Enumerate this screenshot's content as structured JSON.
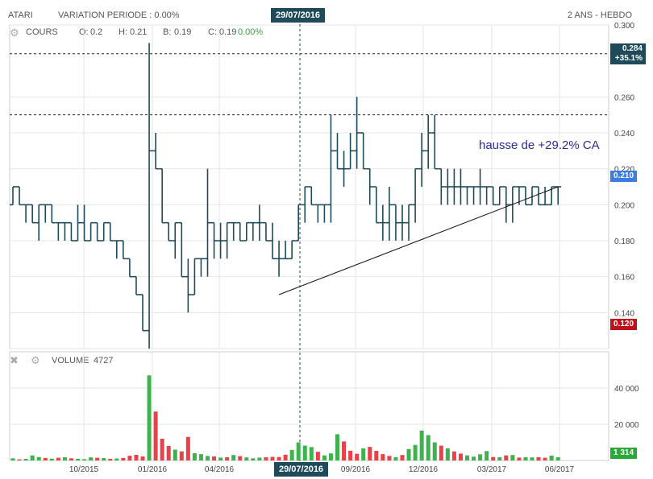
{
  "header": {
    "ticker": "ATARI",
    "variation_label": "VARIATION PERIODE : 0.00%",
    "period_label": "2 ANS - HEBDO",
    "crosshair_date": "29/07/2016"
  },
  "legend": {
    "series_label": "COURS",
    "open_label": "O:",
    "open_value": "0.2",
    "high_label": "H:",
    "high_value": "0.21",
    "low_label": "B:",
    "low_value": "0.19",
    "close_label": "C:",
    "close_value": "0.19",
    "change_value": "0.00%"
  },
  "volume_panel": {
    "label": "VOLUME",
    "value": "4727"
  },
  "badges": {
    "top_line_value": "0.284",
    "top_line_change": "+35.1%",
    "current_value": "0.210",
    "low_value": "0.120",
    "volume_value": "1 314"
  },
  "annotation": "hausse de +29.2% CA",
  "colors": {
    "ohlc": "#1e4a5a",
    "volume_up": "#3cb44b",
    "volume_down": "#e8414a",
    "grid": "#e6e6e6",
    "badge_dark": "#1e4a5a",
    "badge_blue": "#3b7de0",
    "badge_red": "#c0101a",
    "badge_green": "#2aa838",
    "annotation": "#2b2b9a",
    "change_green": "#2aa838"
  },
  "chart_data": [
    {
      "type": "ohlc",
      "title": "",
      "x_tick_labels": [
        "10/2015",
        "01/2016",
        "04/2016",
        "09/2016",
        "12/2016",
        "03/2017",
        "06/2017"
      ],
      "y_tick_labels": [
        "0.140",
        "0.160",
        "0.180",
        "0.200",
        "0.220",
        "0.240",
        "0.260",
        "0.300"
      ],
      "ylim": [
        0.12,
        0.3
      ],
      "grid": true,
      "horizontal_lines": [
        0.284,
        0.25
      ],
      "trendline": {
        "from_week": 41,
        "from_value": 0.15,
        "to_week": 84,
        "to_value": 0.21
      },
      "weeks": 85,
      "bars": [
        [
          0.2,
          0.21,
          0.2,
          0.21
        ],
        [
          0.21,
          0.21,
          0.2,
          0.2
        ],
        [
          0.2,
          0.2,
          0.19,
          0.2
        ],
        [
          0.2,
          0.2,
          0.19,
          0.19
        ],
        [
          0.19,
          0.2,
          0.18,
          0.2
        ],
        [
          0.2,
          0.2,
          0.19,
          0.2
        ],
        [
          0.2,
          0.2,
          0.19,
          0.19
        ],
        [
          0.19,
          0.19,
          0.18,
          0.19
        ],
        [
          0.19,
          0.19,
          0.18,
          0.19
        ],
        [
          0.19,
          0.19,
          0.18,
          0.18
        ],
        [
          0.18,
          0.2,
          0.18,
          0.19
        ],
        [
          0.19,
          0.2,
          0.18,
          0.18
        ],
        [
          0.18,
          0.19,
          0.18,
          0.19
        ],
        [
          0.19,
          0.19,
          0.18,
          0.18
        ],
        [
          0.18,
          0.19,
          0.18,
          0.19
        ],
        [
          0.19,
          0.19,
          0.18,
          0.18
        ],
        [
          0.18,
          0.18,
          0.17,
          0.18
        ],
        [
          0.18,
          0.18,
          0.17,
          0.17
        ],
        [
          0.17,
          0.17,
          0.16,
          0.16
        ],
        [
          0.16,
          0.16,
          0.15,
          0.15
        ],
        [
          0.15,
          0.15,
          0.13,
          0.13
        ],
        [
          0.13,
          0.29,
          0.12,
          0.23
        ],
        [
          0.23,
          0.24,
          0.22,
          0.22
        ],
        [
          0.22,
          0.22,
          0.19,
          0.19
        ],
        [
          0.19,
          0.19,
          0.18,
          0.18
        ],
        [
          0.18,
          0.19,
          0.17,
          0.19
        ],
        [
          0.19,
          0.19,
          0.16,
          0.16
        ],
        [
          0.16,
          0.17,
          0.14,
          0.15
        ],
        [
          0.15,
          0.17,
          0.15,
          0.17
        ],
        [
          0.17,
          0.17,
          0.16,
          0.17
        ],
        [
          0.17,
          0.22,
          0.16,
          0.19
        ],
        [
          0.19,
          0.19,
          0.17,
          0.18
        ],
        [
          0.18,
          0.19,
          0.17,
          0.18
        ],
        [
          0.18,
          0.19,
          0.17,
          0.19
        ],
        [
          0.19,
          0.19,
          0.18,
          0.19
        ],
        [
          0.19,
          0.19,
          0.18,
          0.18
        ],
        [
          0.18,
          0.19,
          0.18,
          0.19
        ],
        [
          0.19,
          0.19,
          0.18,
          0.19
        ],
        [
          0.19,
          0.2,
          0.18,
          0.19
        ],
        [
          0.19,
          0.19,
          0.18,
          0.18
        ],
        [
          0.18,
          0.19,
          0.17,
          0.17
        ],
        [
          0.17,
          0.18,
          0.16,
          0.17
        ],
        [
          0.17,
          0.18,
          0.17,
          0.17
        ],
        [
          0.17,
          0.18,
          0.17,
          0.18
        ],
        [
          0.18,
          0.2,
          0.18,
          0.2
        ],
        [
          0.2,
          0.21,
          0.19,
          0.21
        ],
        [
          0.21,
          0.21,
          0.2,
          0.2
        ],
        [
          0.2,
          0.2,
          0.19,
          0.2
        ],
        [
          0.2,
          0.2,
          0.19,
          0.2
        ],
        [
          0.2,
          0.25,
          0.19,
          0.23
        ],
        [
          0.23,
          0.24,
          0.22,
          0.22
        ],
        [
          0.22,
          0.23,
          0.21,
          0.22
        ],
        [
          0.22,
          0.24,
          0.22,
          0.23
        ],
        [
          0.23,
          0.26,
          0.22,
          0.24
        ],
        [
          0.24,
          0.24,
          0.22,
          0.22
        ],
        [
          0.22,
          0.22,
          0.2,
          0.21
        ],
        [
          0.21,
          0.21,
          0.19,
          0.19
        ],
        [
          0.19,
          0.2,
          0.18,
          0.19
        ],
        [
          0.19,
          0.21,
          0.18,
          0.2
        ],
        [
          0.2,
          0.2,
          0.18,
          0.19
        ],
        [
          0.19,
          0.2,
          0.18,
          0.19
        ],
        [
          0.19,
          0.2,
          0.18,
          0.2
        ],
        [
          0.2,
          0.22,
          0.19,
          0.22
        ],
        [
          0.22,
          0.24,
          0.21,
          0.23
        ],
        [
          0.23,
          0.25,
          0.22,
          0.24
        ],
        [
          0.24,
          0.25,
          0.22,
          0.22
        ],
        [
          0.22,
          0.22,
          0.2,
          0.21
        ],
        [
          0.21,
          0.22,
          0.2,
          0.21
        ],
        [
          0.21,
          0.22,
          0.2,
          0.21
        ],
        [
          0.21,
          0.22,
          0.2,
          0.21
        ],
        [
          0.21,
          0.21,
          0.2,
          0.21
        ],
        [
          0.21,
          0.21,
          0.2,
          0.21
        ],
        [
          0.21,
          0.22,
          0.2,
          0.21
        ],
        [
          0.21,
          0.21,
          0.2,
          0.21
        ],
        [
          0.21,
          0.21,
          0.2,
          0.2
        ],
        [
          0.2,
          0.21,
          0.2,
          0.21
        ],
        [
          0.21,
          0.21,
          0.19,
          0.2
        ],
        [
          0.2,
          0.21,
          0.19,
          0.21
        ],
        [
          0.21,
          0.21,
          0.2,
          0.21
        ],
        [
          0.21,
          0.21,
          0.2,
          0.2
        ],
        [
          0.2,
          0.21,
          0.2,
          0.21
        ],
        [
          0.21,
          0.21,
          0.2,
          0.2
        ],
        [
          0.2,
          0.21,
          0.2,
          0.2
        ],
        [
          0.2,
          0.21,
          0.2,
          0.21
        ],
        [
          0.21,
          0.21,
          0.2,
          0.21
        ]
      ]
    },
    {
      "type": "bar",
      "title": "",
      "y_tick_labels": [
        "20 000",
        "40 000"
      ],
      "ylim": [
        0,
        60000
      ],
      "volumes": [
        1200,
        600,
        900,
        2800,
        1900,
        1400,
        1000,
        1500,
        1800,
        1200,
        900,
        700,
        1700,
        1500,
        1300,
        900,
        1100,
        1400,
        2600,
        3100,
        2200,
        47000,
        27000,
        12000,
        8000,
        6000,
        5000,
        13000,
        4000,
        3500,
        2500,
        2200,
        1600,
        1800,
        3000,
        2400,
        1700,
        1200,
        1600,
        1800,
        2000,
        1900,
        3200,
        5800,
        10000,
        8200,
        7400,
        4800,
        2800,
        3900,
        14500,
        10500,
        5400,
        3700,
        6700,
        7500,
        5300,
        3500,
        2500,
        1800,
        3000,
        6300,
        8600,
        16500,
        14000,
        10000,
        8200,
        6700,
        5000,
        3800,
        2800,
        2100,
        3400,
        5200,
        1900,
        1800,
        2800,
        3000,
        1600,
        1800,
        1700,
        1800,
        1500,
        2700,
        1800
      ],
      "up": [
        1,
        0,
        1,
        1,
        1,
        0,
        1,
        0,
        1,
        0,
        1,
        1,
        1,
        0,
        1,
        0,
        1,
        0,
        0,
        0,
        0,
        1,
        0,
        0,
        0,
        1,
        0,
        0,
        1,
        1,
        1,
        0,
        1,
        0,
        1,
        0,
        1,
        1,
        1,
        0,
        0,
        0,
        0,
        1,
        1,
        1,
        1,
        0,
        1,
        1,
        1,
        0,
        0,
        0,
        1,
        0,
        0,
        0,
        0,
        1,
        0,
        1,
        1,
        1,
        1,
        1,
        0,
        1,
        0,
        0,
        1,
        1,
        1,
        1,
        0,
        1,
        0,
        1,
        0,
        1,
        1,
        0,
        0,
        1,
        1
      ]
    }
  ]
}
